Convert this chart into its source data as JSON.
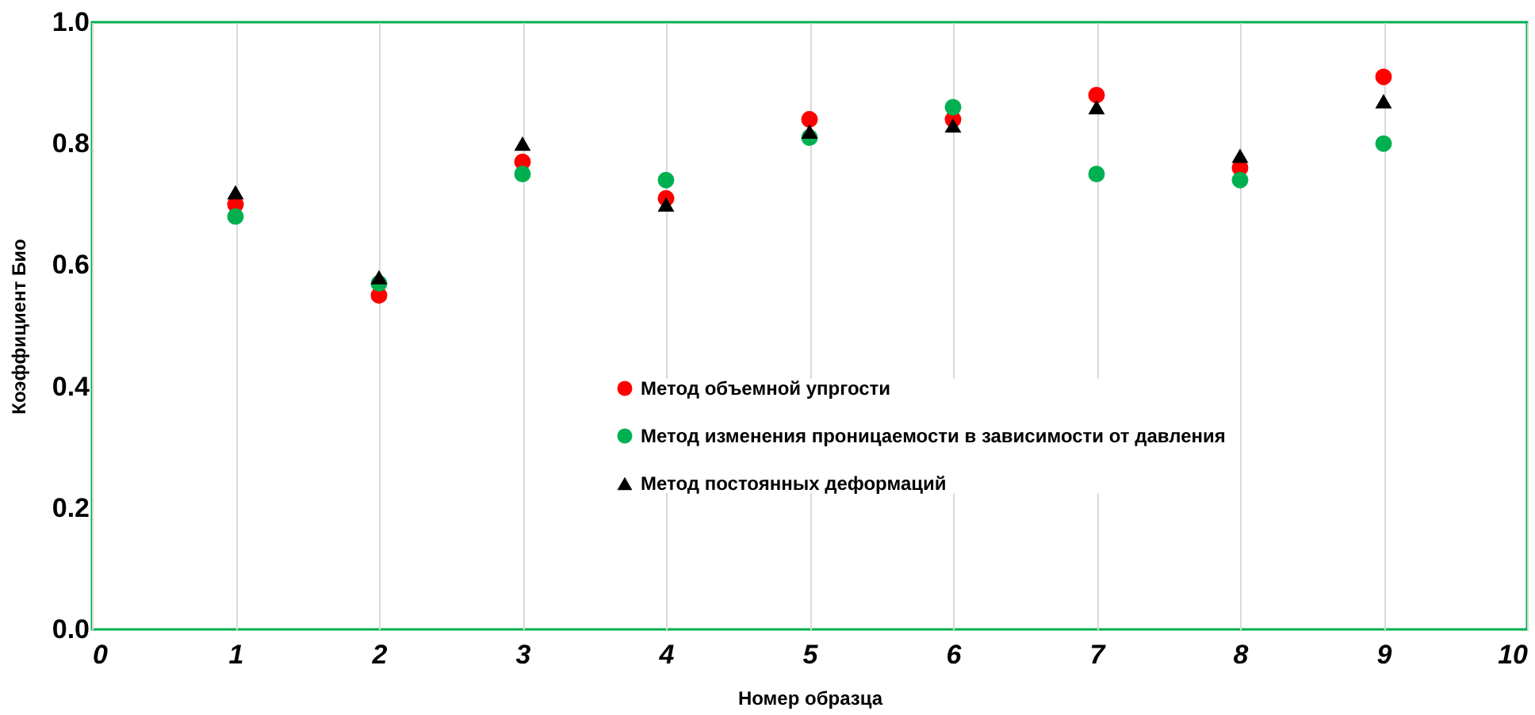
{
  "chart_data": {
    "type": "scatter",
    "xlabel": "Номер образца",
    "ylabel": "Коэффициент Био",
    "x": [
      1,
      2,
      3,
      4,
      5,
      6,
      7,
      8,
      9
    ],
    "series": [
      {
        "name": "Метод объемной упргости",
        "color": "#ff0000",
        "marker": "circle",
        "values": [
          0.7,
          0.55,
          0.77,
          0.71,
          0.84,
          0.84,
          0.88,
          0.76,
          0.91
        ]
      },
      {
        "name": "Метод изменения проницаемости в зависимости от давления",
        "color": "#00b050",
        "marker": "circle",
        "values": [
          0.68,
          0.57,
          0.75,
          0.74,
          0.81,
          0.86,
          0.75,
          0.74,
          0.8
        ]
      },
      {
        "name": "Метод постоянных деформаций",
        "color": "#000000",
        "marker": "triangle",
        "values": [
          0.72,
          0.58,
          0.8,
          0.7,
          0.82,
          0.83,
          0.86,
          0.78,
          0.87
        ]
      }
    ],
    "xlim": [
      0,
      10
    ],
    "xticks": [
      0,
      1,
      2,
      3,
      4,
      5,
      6,
      7,
      8,
      9,
      10
    ],
    "ylim": [
      0,
      1.0
    ],
    "yticks": [
      {
        "value": 0,
        "label": "0.0"
      },
      {
        "value": 0.2,
        "label": "0.2"
      },
      {
        "value": 0.4,
        "label": "0.4"
      },
      {
        "value": 0.6,
        "label": "0.6"
      },
      {
        "value": 0.8,
        "label": "0.8"
      },
      {
        "value": 1.0,
        "label": "1.0"
      }
    ],
    "grid": "x",
    "legend": "bottom"
  }
}
